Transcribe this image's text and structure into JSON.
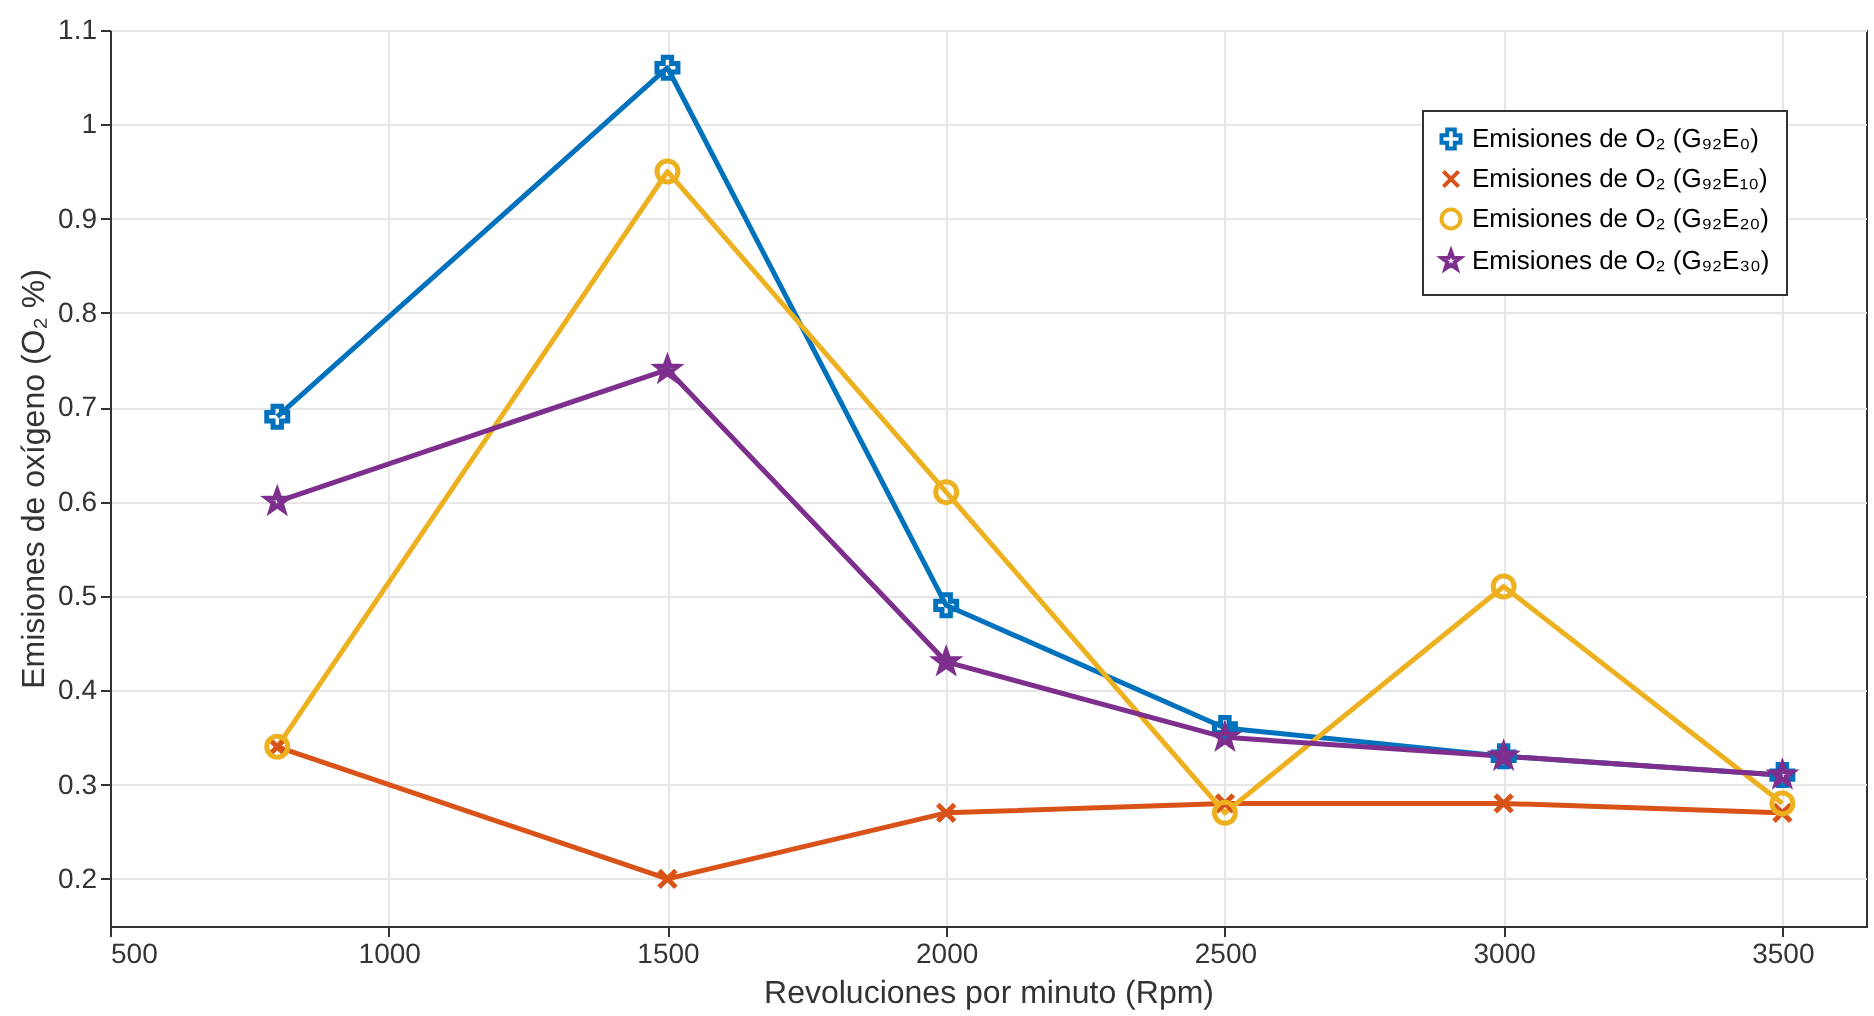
{
  "chart_data": {
    "type": "line",
    "xlabel": "Revoluciones por minuto (Rpm)",
    "ylabel": "Emisiones de oxígeno (O₂ %)",
    "x": [
      800,
      1500,
      2000,
      2500,
      3000,
      3500
    ],
    "series": [
      {
        "name": "Emisiones de O₂ (G₉₂E₀)",
        "color": "#0072bd",
        "marker": "cross",
        "values": [
          0.69,
          1.06,
          0.49,
          0.36,
          0.33,
          0.31
        ]
      },
      {
        "name": "Emisiones de O₂ (G₉₂E₁₀)",
        "color": "#d95319",
        "marker": "x",
        "values": [
          0.34,
          0.2,
          0.27,
          0.28,
          0.28,
          0.27
        ]
      },
      {
        "name": "Emisiones de O₂ (G₉₂E₂₀)",
        "color": "#edb120",
        "marker": "circle",
        "values": [
          0.34,
          0.95,
          0.61,
          0.27,
          0.51,
          0.28
        ]
      },
      {
        "name": "Emisiones de O₂ (G₉₂E₃₀)",
        "color": "#7e2f8e",
        "marker": "star",
        "values": [
          0.6,
          0.74,
          0.43,
          0.35,
          0.33,
          0.31
        ]
      }
    ],
    "xlim": [
      500,
      3650
    ],
    "ylim": [
      0.15,
      1.1
    ],
    "xticks": [
      500,
      1000,
      1500,
      2000,
      2500,
      3000,
      3500
    ],
    "yticks": [
      0.2,
      0.3,
      0.4,
      0.5,
      0.6,
      0.7,
      0.8,
      0.9,
      1,
      1.1
    ],
    "grid": true,
    "legend": "top right",
    "line_style": "solid"
  }
}
